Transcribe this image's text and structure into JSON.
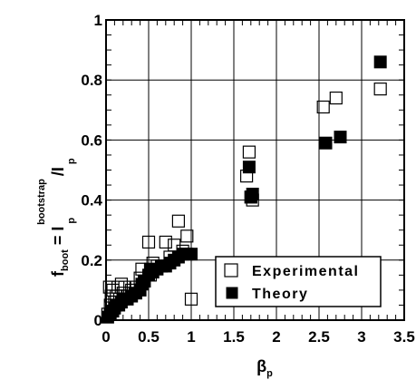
{
  "chart_data": {
    "type": "scatter",
    "title": "",
    "xlabel": "βp",
    "xlabel_parts": {
      "main": "β",
      "sub": "p"
    },
    "ylabel": "fboot = Ipbootstrap/Ip",
    "ylabel_parts": {
      "f": "f",
      "f_sub": "boot",
      "eq": " = ",
      "I1": "I",
      "I1_sub": "p",
      "I1_sup": "bootstrap",
      "slash": "/",
      "I2": "I",
      "I2_sub": "p"
    },
    "xlim": [
      0,
      3.5
    ],
    "ylim": [
      0,
      1
    ],
    "x_ticks": [
      0,
      0.5,
      1,
      1.5,
      2,
      2.5,
      3,
      3.5
    ],
    "x_tick_labels": [
      "0",
      "0.5",
      "1",
      "1.5",
      "2",
      "2.5",
      "3",
      "3.5"
    ],
    "y_ticks": [
      0,
      0.2,
      0.4,
      0.6,
      0.8,
      1
    ],
    "y_tick_labels": [
      "0",
      "0.2",
      "0.4",
      "0.6",
      "0.8",
      "1"
    ],
    "grid": true,
    "legend_position": "bottom-right",
    "series": [
      {
        "name": "Experimental",
        "marker": "open-square",
        "color": "#000000",
        "x": [
          0.02,
          0.04,
          0.05,
          0.06,
          0.08,
          0.1,
          0.12,
          0.14,
          0.16,
          0.18,
          0.2,
          0.22,
          0.25,
          0.3,
          0.35,
          0.4,
          0.42,
          0.45,
          0.5,
          0.52,
          0.55,
          0.6,
          0.65,
          0.7,
          0.75,
          0.8,
          0.85,
          0.9,
          0.95,
          1.0,
          1.65,
          1.68,
          1.7,
          1.72,
          2.55,
          2.7,
          3.22
        ],
        "y": [
          0.02,
          0.11,
          0.05,
          0.08,
          0.1,
          0.06,
          0.08,
          0.11,
          0.07,
          0.12,
          0.09,
          0.11,
          0.08,
          0.1,
          0.11,
          0.14,
          0.17,
          0.13,
          0.26,
          0.15,
          0.19,
          0.18,
          0.18,
          0.26,
          0.21,
          0.25,
          0.33,
          0.23,
          0.28,
          0.07,
          0.48,
          0.56,
          0.41,
          0.4,
          0.71,
          0.74,
          0.77
        ]
      },
      {
        "name": "Theory",
        "marker": "filled-square",
        "color": "#000000",
        "x": [
          0.02,
          0.05,
          0.08,
          0.1,
          0.12,
          0.15,
          0.18,
          0.2,
          0.25,
          0.3,
          0.35,
          0.4,
          0.42,
          0.45,
          0.5,
          0.52,
          0.55,
          0.6,
          0.65,
          0.7,
          0.75,
          0.8,
          0.85,
          0.9,
          0.95,
          1.0,
          1.68,
          1.7,
          1.72,
          2.58,
          2.75,
          3.22
        ],
        "y": [
          0.01,
          0.02,
          0.03,
          0.04,
          0.05,
          0.05,
          0.06,
          0.07,
          0.07,
          0.08,
          0.09,
          0.1,
          0.12,
          0.13,
          0.15,
          0.17,
          0.16,
          0.17,
          0.18,
          0.18,
          0.19,
          0.2,
          0.21,
          0.22,
          0.22,
          0.22,
          0.51,
          0.41,
          0.42,
          0.59,
          0.61,
          0.86
        ]
      }
    ]
  }
}
